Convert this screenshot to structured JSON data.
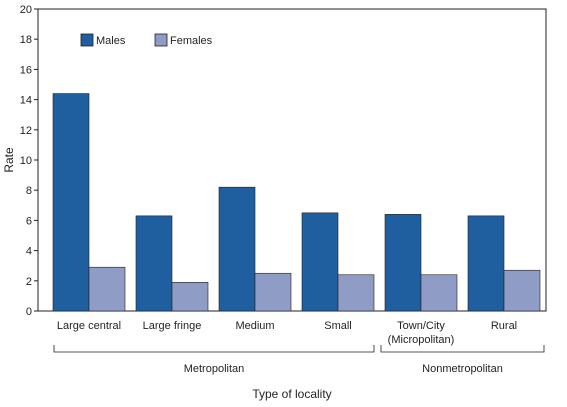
{
  "chart_data": {
    "type": "bar",
    "title": "",
    "xlabel": "Type of locality",
    "ylabel": "Rate",
    "ylim": [
      0,
      20
    ],
    "yticks": [
      0,
      2,
      4,
      6,
      8,
      10,
      12,
      14,
      16,
      18,
      20
    ],
    "categories": [
      "Large central",
      "Large fringe",
      "Medium",
      "Small",
      "Town/City",
      "Rural"
    ],
    "category_sublabels": [
      "",
      "",
      "",
      "",
      "(Micropolitan)",
      ""
    ],
    "series": [
      {
        "name": "Males",
        "color": "#1f5fa0",
        "values": [
          14.4,
          6.3,
          8.2,
          6.5,
          6.4,
          6.3
        ]
      },
      {
        "name": "Females",
        "color": "#8e9cc6",
        "values": [
          2.9,
          1.9,
          2.5,
          2.4,
          2.4,
          2.7
        ]
      }
    ],
    "groups": [
      {
        "label": "Metropolitan",
        "from": 0,
        "to": 3
      },
      {
        "label": "Nonmetropolitan",
        "from": 4,
        "to": 5
      }
    ],
    "legend_position": "top-left",
    "grid": false
  }
}
